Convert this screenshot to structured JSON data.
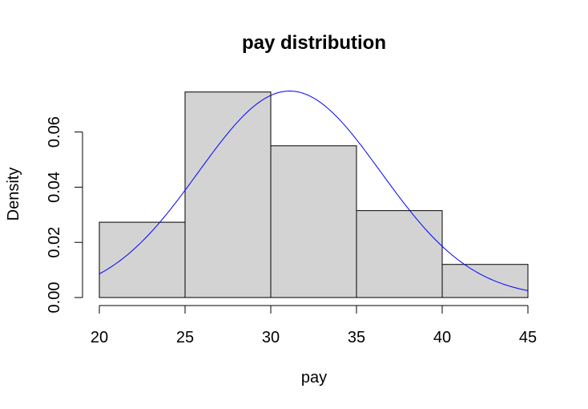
{
  "chart_data": {
    "type": "bar",
    "title": "pay distribution",
    "xlabel": "pay",
    "ylabel": "Density",
    "bins": [
      {
        "from": 20,
        "to": 25,
        "density": 0.0273
      },
      {
        "from": 25,
        "to": 30,
        "density": 0.0745
      },
      {
        "from": 30,
        "to": 35,
        "density": 0.055
      },
      {
        "from": 35,
        "to": 40,
        "density": 0.0315
      },
      {
        "from": 40,
        "to": 45,
        "density": 0.012
      }
    ],
    "bar_color": "#d3d3d3",
    "curve": {
      "type": "normal-density",
      "mean": 31.1,
      "sd": 5.33,
      "color": "#0000ff"
    },
    "xlim": [
      20,
      45
    ],
    "ylim": [
      0,
      0.075
    ],
    "xticks": [
      "20",
      "25",
      "30",
      "35",
      "40",
      "45"
    ],
    "yticks": [
      "0.00",
      "0.02",
      "0.04",
      "0.06"
    ],
    "grid": false
  }
}
